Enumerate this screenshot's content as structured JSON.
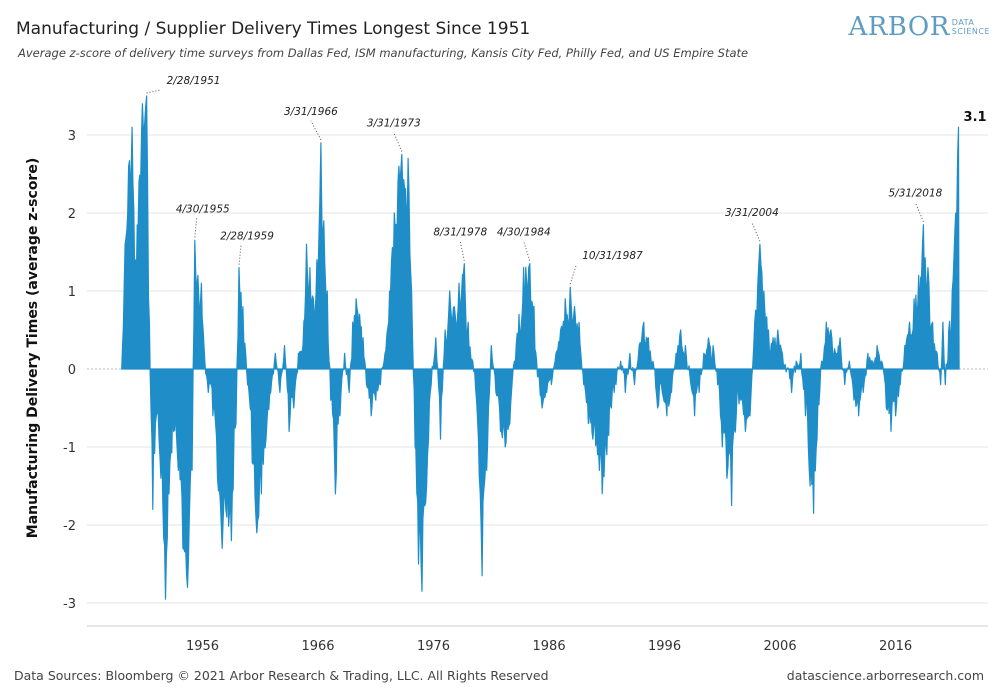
{
  "header": {
    "title": "Manufacturing / Supplier Delivery Times Longest Since 1951",
    "subtitle": "Average z-score of delivery time surveys from Dallas Fed, ISM manufacturing, Kansis City Fed, Philly Fed, and US Empire State",
    "logo_main": "ARBOR",
    "logo_sub_1": "DATA",
    "logo_sub_2": "SCIENCE"
  },
  "footer": {
    "sources": "Data Sources: Bloomberg © 2021 Arbor Research & Trading, LLC. All Rights Reserved",
    "site": "datascience.arborresearch.com"
  },
  "colors": {
    "series": "#1f8dc8",
    "grid": "#e6e6e6",
    "zero": "#bbbbbb"
  },
  "chart_data": {
    "type": "area",
    "title": "Manufacturing / Supplier Delivery Times Longest Since 1951",
    "subtitle": "Average z-score of delivery time surveys from Dallas Fed, ISM manufacturing, Kansis City Fed, Philly Fed, and US Empire State",
    "xlabel": "",
    "ylabel": "Manufacturing Delivery Times (average z-score)",
    "xlim": [
      1946,
      2024
    ],
    "ylim": [
      -3.3,
      3.7
    ],
    "x_ticks": [
      1956,
      1966,
      1976,
      1986,
      1996,
      2006,
      2016
    ],
    "y_ticks": [
      -3,
      -2,
      -1,
      0,
      1,
      2,
      3
    ],
    "grid": "horizontal",
    "legend": "none",
    "series": [
      {
        "values_note": "approximate monthly average z-score read from chart (year, value)",
        "points": [
          [
            1949.0,
            0.0
          ],
          [
            1949.3,
            1.6
          ],
          [
            1949.6,
            2.6
          ],
          [
            1949.9,
            3.1
          ],
          [
            1950.2,
            1.4
          ],
          [
            1950.5,
            2.4
          ],
          [
            1950.8,
            3.4
          ],
          [
            1951.16,
            3.5
          ],
          [
            1951.4,
            0.6
          ],
          [
            1951.7,
            -1.8
          ],
          [
            1952.0,
            -0.6
          ],
          [
            1952.4,
            -1.4
          ],
          [
            1952.8,
            -2.95
          ],
          [
            1953.1,
            -1.6
          ],
          [
            1953.5,
            -0.8
          ],
          [
            1953.9,
            -1.3
          ],
          [
            1954.3,
            -2.3
          ],
          [
            1954.7,
            -2.8
          ],
          [
            1955.1,
            -1.3
          ],
          [
            1955.33,
            1.65
          ],
          [
            1955.6,
            1.2
          ],
          [
            1955.9,
            1.1
          ],
          [
            1956.2,
            0.1
          ],
          [
            1956.5,
            -0.3
          ],
          [
            1956.9,
            -0.6
          ],
          [
            1957.3,
            -1.4
          ],
          [
            1957.7,
            -2.3
          ],
          [
            1958.1,
            -1.9
          ],
          [
            1958.5,
            -2.2
          ],
          [
            1958.9,
            -0.7
          ],
          [
            1959.16,
            1.3
          ],
          [
            1959.5,
            0.8
          ],
          [
            1959.9,
            -0.2
          ],
          [
            1960.3,
            -1.2
          ],
          [
            1960.7,
            -2.1
          ],
          [
            1961.1,
            -1.6
          ],
          [
            1961.5,
            -0.9
          ],
          [
            1961.9,
            -0.3
          ],
          [
            1962.3,
            0.2
          ],
          [
            1962.7,
            -0.3
          ],
          [
            1963.1,
            0.3
          ],
          [
            1963.5,
            -0.8
          ],
          [
            1963.9,
            -0.5
          ],
          [
            1964.3,
            0.2
          ],
          [
            1964.7,
            0.3
          ],
          [
            1965.0,
            1.6
          ],
          [
            1965.3,
            1.3
          ],
          [
            1965.6,
            0.9
          ],
          [
            1965.9,
            1.4
          ],
          [
            1966.25,
            2.9
          ],
          [
            1966.5,
            1.9
          ],
          [
            1966.8,
            1.0
          ],
          [
            1967.1,
            -0.4
          ],
          [
            1967.5,
            -1.6
          ],
          [
            1967.9,
            -0.6
          ],
          [
            1968.3,
            0.2
          ],
          [
            1968.7,
            -0.3
          ],
          [
            1969.0,
            0.6
          ],
          [
            1969.3,
            0.9
          ],
          [
            1969.6,
            0.7
          ],
          [
            1969.9,
            0.4
          ],
          [
            1970.2,
            -0.2
          ],
          [
            1970.6,
            -0.6
          ],
          [
            1971.0,
            -0.4
          ],
          [
            1971.4,
            -0.2
          ],
          [
            1971.8,
            0.2
          ],
          [
            1972.2,
            1.0
          ],
          [
            1972.6,
            2.0
          ],
          [
            1973.0,
            2.6
          ],
          [
            1973.25,
            2.75
          ],
          [
            1973.5,
            2.3
          ],
          [
            1973.8,
            2.7
          ],
          [
            1974.1,
            1.0
          ],
          [
            1974.4,
            -1.0
          ],
          [
            1974.7,
            -2.5
          ],
          [
            1975.0,
            -2.85
          ],
          [
            1975.4,
            -1.5
          ],
          [
            1975.8,
            -0.2
          ],
          [
            1976.2,
            0.4
          ],
          [
            1976.6,
            -0.9
          ],
          [
            1977.0,
            0.5
          ],
          [
            1977.4,
            1.0
          ],
          [
            1977.8,
            0.8
          ],
          [
            1978.2,
            1.1
          ],
          [
            1978.66,
            1.35
          ],
          [
            1979.0,
            0.6
          ],
          [
            1979.4,
            0.1
          ],
          [
            1979.8,
            -0.6
          ],
          [
            1980.2,
            -2.65
          ],
          [
            1980.6,
            -1.3
          ],
          [
            1981.0,
            0.3
          ],
          [
            1981.4,
            -0.3
          ],
          [
            1981.8,
            -0.8
          ],
          [
            1982.2,
            -1.0
          ],
          [
            1982.6,
            -0.7
          ],
          [
            1983.0,
            0.1
          ],
          [
            1983.4,
            0.7
          ],
          [
            1983.8,
            1.3
          ],
          [
            1984.33,
            1.35
          ],
          [
            1984.7,
            0.8
          ],
          [
            1985.0,
            -0.1
          ],
          [
            1985.4,
            -0.5
          ],
          [
            1985.8,
            -0.3
          ],
          [
            1986.2,
            -0.2
          ],
          [
            1986.6,
            0.2
          ],
          [
            1987.0,
            0.5
          ],
          [
            1987.4,
            0.9
          ],
          [
            1987.83,
            1.05
          ],
          [
            1988.2,
            0.8
          ],
          [
            1988.6,
            0.6
          ],
          [
            1989.0,
            -0.2
          ],
          [
            1989.4,
            -0.7
          ],
          [
            1989.8,
            -0.9
          ],
          [
            1990.2,
            -1.1
          ],
          [
            1990.6,
            -1.6
          ],
          [
            1991.0,
            -1.1
          ],
          [
            1991.4,
            -0.5
          ],
          [
            1991.8,
            -0.2
          ],
          [
            1992.2,
            0.1
          ],
          [
            1992.6,
            -0.3
          ],
          [
            1993.0,
            0.2
          ],
          [
            1993.4,
            -0.2
          ],
          [
            1993.8,
            0.3
          ],
          [
            1994.2,
            0.6
          ],
          [
            1994.6,
            0.4
          ],
          [
            1995.0,
            0.1
          ],
          [
            1995.4,
            -0.5
          ],
          [
            1995.8,
            -0.3
          ],
          [
            1996.2,
            -0.6
          ],
          [
            1996.6,
            -0.3
          ],
          [
            1997.0,
            0.2
          ],
          [
            1997.4,
            0.5
          ],
          [
            1997.8,
            0.3
          ],
          [
            1998.2,
            -0.1
          ],
          [
            1998.6,
            -0.6
          ],
          [
            1999.0,
            -0.3
          ],
          [
            1999.4,
            0.2
          ],
          [
            1999.8,
            0.4
          ],
          [
            2000.2,
            0.3
          ],
          [
            2000.6,
            -0.2
          ],
          [
            2001.0,
            -1.0
          ],
          [
            2001.4,
            -1.4
          ],
          [
            2001.8,
            -1.75
          ],
          [
            2002.2,
            -0.6
          ],
          [
            2002.6,
            -0.4
          ],
          [
            2003.0,
            -0.8
          ],
          [
            2003.4,
            -0.6
          ],
          [
            2003.8,
            0.6
          ],
          [
            2004.25,
            1.6
          ],
          [
            2004.6,
            1.0
          ],
          [
            2005.0,
            0.5
          ],
          [
            2005.4,
            0.4
          ],
          [
            2005.8,
            0.5
          ],
          [
            2006.2,
            0.2
          ],
          [
            2006.6,
            0.0
          ],
          [
            2007.0,
            -0.3
          ],
          [
            2007.4,
            0.1
          ],
          [
            2007.8,
            0.2
          ],
          [
            2008.2,
            -0.6
          ],
          [
            2008.6,
            -1.5
          ],
          [
            2008.9,
            -1.85
          ],
          [
            2009.2,
            -0.9
          ],
          [
            2009.6,
            0.1
          ],
          [
            2010.0,
            0.6
          ],
          [
            2010.4,
            0.5
          ],
          [
            2010.8,
            0.2
          ],
          [
            2011.2,
            0.4
          ],
          [
            2011.6,
            -0.2
          ],
          [
            2012.0,
            0.1
          ],
          [
            2012.4,
            -0.4
          ],
          [
            2012.8,
            -0.6
          ],
          [
            2013.2,
            -0.3
          ],
          [
            2013.6,
            0.2
          ],
          [
            2014.0,
            0.1
          ],
          [
            2014.4,
            0.3
          ],
          [
            2014.8,
            0.1
          ],
          [
            2015.2,
            -0.5
          ],
          [
            2015.6,
            -0.8
          ],
          [
            2016.0,
            -0.6
          ],
          [
            2016.4,
            -0.2
          ],
          [
            2016.8,
            0.3
          ],
          [
            2017.2,
            0.6
          ],
          [
            2017.6,
            0.9
          ],
          [
            2018.0,
            1.2
          ],
          [
            2018.41,
            1.85
          ],
          [
            2018.8,
            1.3
          ],
          [
            2019.2,
            0.6
          ],
          [
            2019.6,
            0.2
          ],
          [
            2019.9,
            -0.2
          ],
          [
            2020.1,
            0.6
          ],
          [
            2020.3,
            -0.2
          ],
          [
            2020.6,
            0.5
          ],
          [
            2020.9,
            1.0
          ],
          [
            2021.2,
            2.0
          ],
          [
            2021.45,
            3.1
          ],
          [
            2021.5,
            0.0
          ]
        ]
      }
    ],
    "annotations": [
      {
        "label": "2/28/1951",
        "x": 1951.16,
        "y": 3.5
      },
      {
        "label": "4/30/1955",
        "x": 1955.33,
        "y": 1.65
      },
      {
        "label": "2/28/1959",
        "x": 1959.16,
        "y": 1.3
      },
      {
        "label": "3/31/1966",
        "x": 1966.25,
        "y": 2.9
      },
      {
        "label": "3/31/1973",
        "x": 1973.25,
        "y": 2.75
      },
      {
        "label": "8/31/1978",
        "x": 1978.66,
        "y": 1.35
      },
      {
        "label": "4/30/1984",
        "x": 1984.33,
        "y": 1.35
      },
      {
        "label": "10/31/1987",
        "x": 1987.83,
        "y": 1.05
      },
      {
        "label": "3/31/2004",
        "x": 2004.25,
        "y": 1.6
      },
      {
        "label": "5/31/2018",
        "x": 2018.41,
        "y": 1.85
      }
    ],
    "end_label": "3.1"
  }
}
